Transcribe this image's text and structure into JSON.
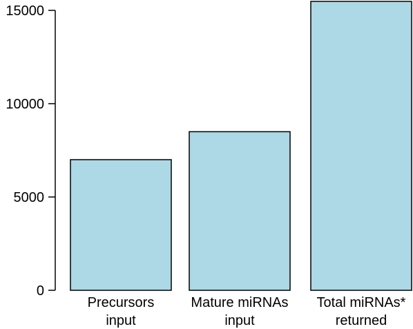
{
  "chart_data": {
    "type": "bar",
    "title": "",
    "xlabel": "",
    "ylabel": "",
    "categories": [
      [
        "Precursors",
        "input"
      ],
      [
        "Mature miRNAs",
        "input"
      ],
      [
        "Total miRNAs*",
        "returned"
      ]
    ],
    "values": [
      7000,
      8500,
      15500
    ],
    "ylim": [
      0,
      15000
    ],
    "yticks": [
      0,
      5000,
      10000,
      15000
    ],
    "ytick_labels": [
      "0",
      "5000",
      "10000",
      "15000"
    ],
    "bar_color": "#add8e6",
    "grid": false,
    "legend": "none"
  }
}
